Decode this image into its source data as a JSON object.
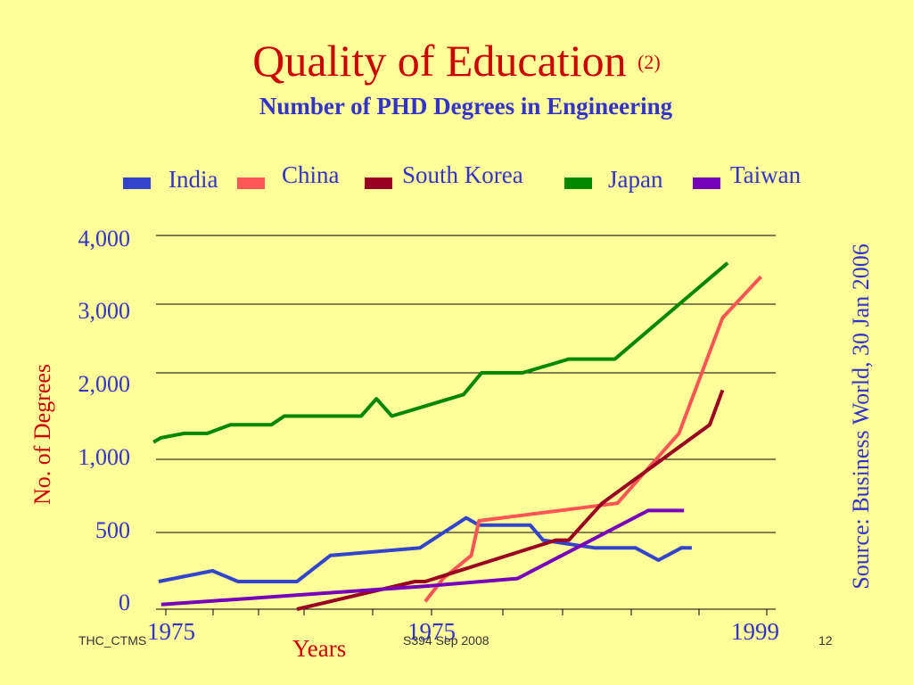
{
  "page": {
    "title": "Quality of Education",
    "title_suffix": "(2)",
    "subtitle": "Number of PHD Degrees in Engineering",
    "source": "Source:  Business World, 30 Jan 2006",
    "footer_left": "THC_CTMS",
    "footer_center": "S394 Sep 2008",
    "footer_right": "12"
  },
  "chart_data": {
    "type": "line",
    "title": "Number of PHD Degrees in Engineering",
    "xlabel": "Years",
    "ylabel": "No. of  Degrees",
    "x_tick_labels": [
      "1975",
      "1975",
      "1999"
    ],
    "y_tick_labels": [
      "0",
      "500",
      "1,000",
      "2,000",
      "3,000",
      "4,000"
    ],
    "y_tick_values": [
      0,
      500,
      1000,
      2000,
      3000,
      4000
    ],
    "x_range": [
      1975,
      1999
    ],
    "grid": true,
    "legend_position": "top",
    "series": [
      {
        "name": "India",
        "color": "#3344CC",
        "points": [
          [
            1975.1,
            180
          ],
          [
            1977.2,
            250
          ],
          [
            1978.2,
            180
          ],
          [
            1980.5,
            180
          ],
          [
            1981.8,
            350
          ],
          [
            1985.3,
            400
          ],
          [
            1987.1,
            600
          ],
          [
            1987.6,
            550
          ],
          [
            1989.6,
            550
          ],
          [
            1990.1,
            450
          ],
          [
            1992.1,
            400
          ],
          [
            1993.7,
            400
          ],
          [
            1994.6,
            320
          ],
          [
            1995.5,
            400
          ],
          [
            1995.9,
            400
          ]
        ]
      },
      {
        "name": "China",
        "color": "#FF5555",
        "points": [
          [
            1985.5,
            50
          ],
          [
            1986.2,
            200
          ],
          [
            1987.3,
            350
          ],
          [
            1987.6,
            580
          ],
          [
            1993.0,
            700
          ],
          [
            1995.4,
            1300
          ],
          [
            1997.1,
            2800
          ],
          [
            1998.6,
            3400
          ]
        ]
      },
      {
        "name": "South Korea",
        "color": "#990022",
        "points": [
          [
            1980.5,
            0
          ],
          [
            1985.1,
            180
          ],
          [
            1985.5,
            180
          ],
          [
            1990.6,
            450
          ],
          [
            1991.1,
            450
          ],
          [
            1992.4,
            700
          ],
          [
            1996.6,
            1400
          ],
          [
            1997.1,
            1800
          ]
        ]
      },
      {
        "name": "Japan",
        "color": "#008800",
        "points": [
          [
            1974.9,
            1200
          ],
          [
            1975.2,
            1250
          ],
          [
            1976.1,
            1300
          ],
          [
            1977.0,
            1300
          ],
          [
            1977.9,
            1400
          ],
          [
            1979.5,
            1400
          ],
          [
            1980.0,
            1500
          ],
          [
            1983.0,
            1500
          ],
          [
            1983.6,
            1700
          ],
          [
            1984.2,
            1500
          ],
          [
            1987.0,
            1750
          ],
          [
            1987.7,
            2000
          ],
          [
            1989.3,
            2000
          ],
          [
            1991.1,
            2200
          ],
          [
            1992.9,
            2200
          ],
          [
            1997.3,
            3600
          ]
        ]
      },
      {
        "name": "Taiwan",
        "color": "#7700BB",
        "points": [
          [
            1975.2,
            30
          ],
          [
            1985.5,
            150
          ],
          [
            1989.1,
            200
          ],
          [
            1994.2,
            650
          ],
          [
            1995.6,
            650
          ]
        ]
      }
    ]
  }
}
